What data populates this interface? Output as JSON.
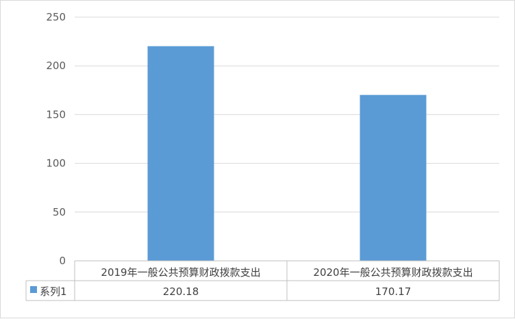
{
  "chart_data": {
    "type": "bar",
    "categories": [
      "2019年一般公共预算财政拨款支出",
      "2020年一般公共预算财政拨款支出"
    ],
    "series": [
      {
        "name": "系列1",
        "values": [
          220.18,
          170.17
        ],
        "color": "#5b9bd5"
      }
    ],
    "ylim": [
      0,
      250
    ],
    "yticks": [
      0,
      50,
      100,
      150,
      200,
      250
    ],
    "grid": true,
    "data_table": true,
    "data_table_values": [
      "220.18",
      "170.17"
    ]
  }
}
